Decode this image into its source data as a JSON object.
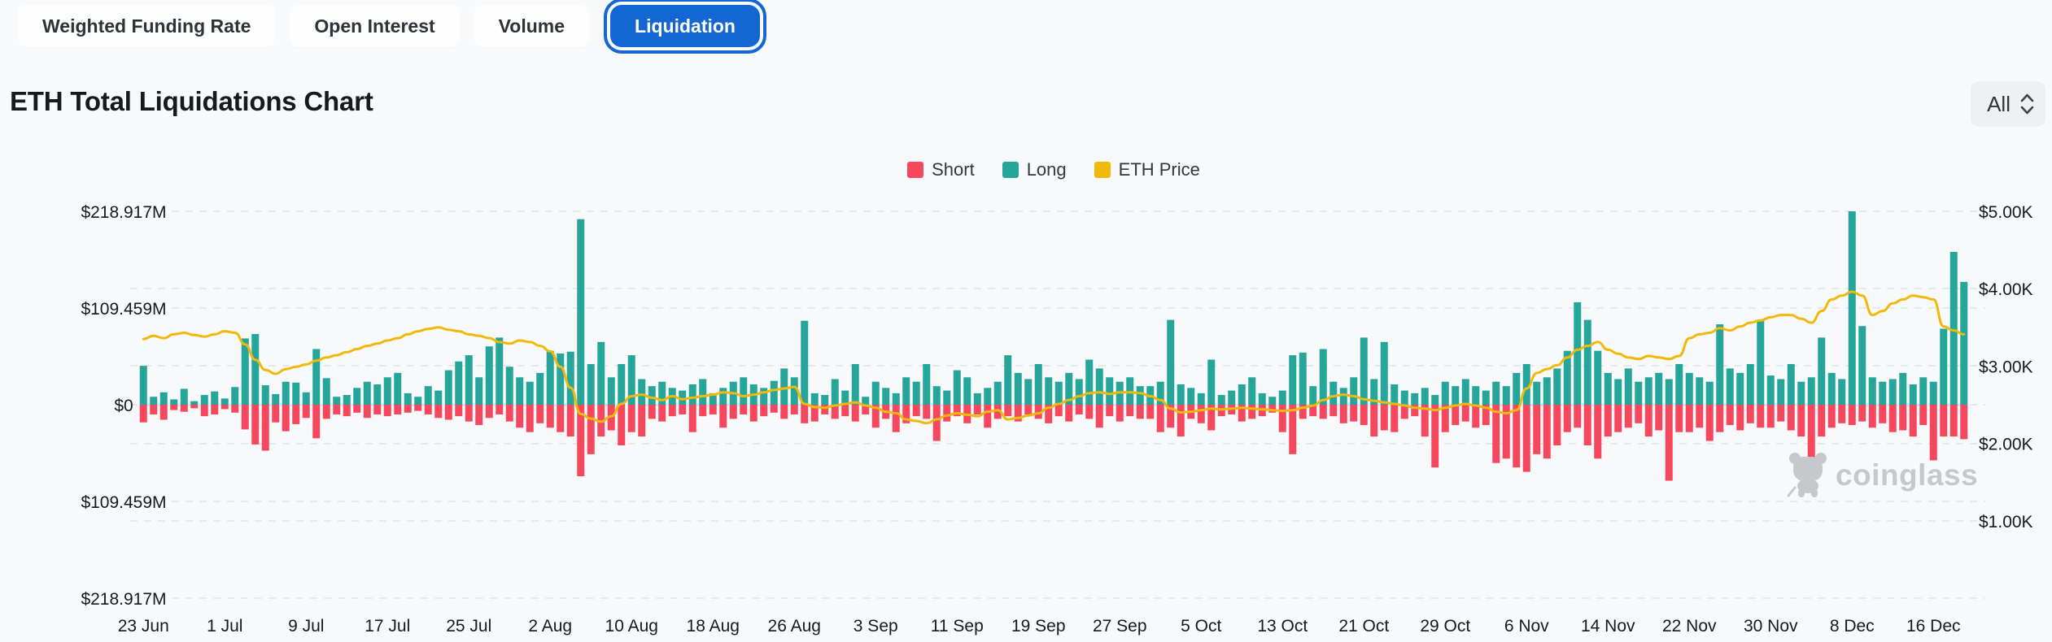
{
  "tabs": {
    "items": [
      {
        "label": "Weighted Funding Rate",
        "active": false
      },
      {
        "label": "Open Interest",
        "active": false
      },
      {
        "label": "Volume",
        "active": false
      },
      {
        "label": "Liquidation",
        "active": true
      }
    ]
  },
  "title": "ETH Total Liquidations Chart",
  "range_selector": {
    "value": "All"
  },
  "watermark": "coinglass",
  "colors": {
    "short": "#f5475d",
    "long": "#26a69a",
    "price": "#f0b90b",
    "active_tab": "#1467d2",
    "grid": "#e7e8ea",
    "axis_text": "#17191c",
    "watermark": "#c6c8cb"
  },
  "chart_data": {
    "type": "bar",
    "title": "ETH Total Liquidations Chart",
    "legend_position": "top-center",
    "grid": "dashed",
    "x_start_label": "23 Jun",
    "x_tick_labels": [
      "23 Jun",
      "1 Jul",
      "9 Jul",
      "17 Jul",
      "25 Jul",
      "2 Aug",
      "10 Aug",
      "18 Aug",
      "26 Aug",
      "3 Sep",
      "11 Sep",
      "19 Sep",
      "27 Sep",
      "5 Oct",
      "13 Oct",
      "21 Oct",
      "29 Oct",
      "6 Nov",
      "14 Nov",
      "22 Nov",
      "30 Nov",
      "8 Dec",
      "16 Dec"
    ],
    "x_tick_interval_days": 8,
    "left_axis": {
      "ticks": [
        "$218.917M",
        "$109.459M",
        "$0",
        "$109.459M",
        "$218.917M"
      ],
      "max_abs_millions": 218.917,
      "unit": "USD millions, Long up / Short down"
    },
    "right_axis": {
      "ticks": [
        "$5.00K",
        "$4.00K",
        "$3.00K",
        "$2.00K",
        "$1.00K"
      ],
      "tick_values": [
        5000,
        4000,
        3000,
        2000,
        1000
      ],
      "min": 0,
      "max": 5000,
      "unit": "ETH price USD"
    },
    "series": [
      {
        "name": "Long",
        "type": "bar",
        "direction": "up",
        "color": "#26a69a",
        "unit": "M",
        "values": [
          44,
          9,
          14,
          6,
          18,
          4,
          11,
          15,
          7,
          20,
          75,
          80,
          22,
          12,
          26,
          25,
          14,
          63,
          30,
          9,
          11,
          19,
          26,
          23,
          31,
          36,
          13,
          9,
          21,
          16,
          39,
          49,
          56,
          31,
          66,
          76,
          43,
          31,
          26,
          36,
          61,
          58,
          60,
          210,
          46,
          71,
          31,
          46,
          56,
          29,
          21,
          26,
          19,
          16,
          23,
          29,
          13,
          19,
          26,
          31,
          23,
          19,
          27,
          41,
          31,
          95,
          13,
          11,
          29,
          16,
          46,
          9,
          26,
          19,
          13,
          31,
          26,
          46,
          21,
          16,
          39,
          31,
          13,
          19,
          26,
          56,
          36,
          29,
          46,
          31,
          26,
          36,
          29,
          51,
          41,
          31,
          26,
          31,
          21,
          21,
          26,
          96,
          23,
          19,
          13,
          51,
          11,
          16,
          23,
          31,
          13,
          9,
          16,
          56,
          59,
          21,
          63,
          26,
          19,
          31,
          76,
          29,
          71,
          23,
          16,
          13,
          19,
          11,
          26,
          21,
          29,
          21,
          16,
          26,
          21,
          36,
          46,
          26,
          31,
          41,
          61,
          116,
          96,
          61,
          36,
          29,
          41,
          26,
          31,
          36,
          29,
          46,
          36,
          31,
          26,
          91,
          41,
          36,
          46,
          96,
          33,
          29,
          46,
          26,
          31,
          76,
          36,
          29,
          218.917,
          89,
          31,
          26,
          29,
          36,
          23,
          31,
          26,
          86,
          173,
          139
        ]
      },
      {
        "name": "Short",
        "type": "bar",
        "direction": "down",
        "color": "#f5475d",
        "unit": "M",
        "values": [
          20,
          11,
          17,
          6,
          8,
          4,
          13,
          11,
          5,
          9,
          28,
          45,
          52,
          20,
          30,
          22,
          15,
          38,
          16,
          11,
          13,
          9,
          15,
          11,
          13,
          11,
          9,
          7,
          11,
          15,
          17,
          13,
          19,
          23,
          15,
          11,
          19,
          26,
          31,
          21,
          26,
          31,
          36,
          81,
          56,
          36,
          29,
          46,
          31,
          36,
          16,
          19,
          13,
          11,
          31,
          13,
          11,
          26,
          16,
          11,
          19,
          13,
          9,
          16,
          11,
          21,
          19,
          11,
          16,
          13,
          19,
          11,
          26,
          16,
          31,
          21,
          13,
          16,
          41,
          19,
          13,
          21,
          11,
          26,
          16,
          13,
          19,
          11,
          16,
          21,
          13,
          19,
          11,
          16,
          26,
          13,
          19,
          13,
          16,
          16,
          31,
          26,
          36,
          16,
          21,
          29,
          13,
          11,
          19,
          16,
          13,
          9,
          31,
          56,
          16,
          13,
          16,
          13,
          21,
          19,
          23,
          36,
          29,
          31,
          16,
          13,
          36,
          71,
          31,
          23,
          19,
          26,
          23,
          66,
          61,
          71,
          76,
          56,
          61,
          46,
          31,
          26,
          46,
          61,
          36,
          31,
          26,
          21,
          36,
          29,
          86,
          31,
          31,
          26,
          41,
          31,
          23,
          29,
          21,
          26,
          26,
          19,
          29,
          36,
          76,
          36,
          26,
          21,
          23,
          19,
          26,
          21,
          31,
          29,
          36,
          23,
          63,
          36,
          36,
          39
        ]
      },
      {
        "name": "ETH Price",
        "type": "line",
        "color": "#f0b90b",
        "unit": "USD",
        "values": [
          3350,
          3390,
          3360,
          3410,
          3430,
          3400,
          3380,
          3410,
          3450,
          3430,
          3280,
          3080,
          2950,
          2900,
          2960,
          2990,
          3020,
          3070,
          3110,
          3140,
          3180,
          3220,
          3260,
          3290,
          3330,
          3360,
          3410,
          3450,
          3480,
          3500,
          3470,
          3450,
          3410,
          3390,
          3360,
          3310,
          3290,
          3330,
          3310,
          3260,
          3190,
          2990,
          2720,
          2380,
          2320,
          2280,
          2350,
          2510,
          2610,
          2630,
          2590,
          2560,
          2610,
          2570,
          2590,
          2610,
          2630,
          2660,
          2650,
          2610,
          2630,
          2660,
          2690,
          2710,
          2730,
          2510,
          2470,
          2460,
          2490,
          2510,
          2530,
          2490,
          2460,
          2410,
          2390,
          2310,
          2290,
          2260,
          2310,
          2360,
          2390,
          2370,
          2350,
          2410,
          2430,
          2310,
          2330,
          2360,
          2390,
          2460,
          2510,
          2560,
          2610,
          2650,
          2660,
          2640,
          2660,
          2660,
          2650,
          2610,
          2560,
          2450,
          2400,
          2410,
          2430,
          2450,
          2440,
          2450,
          2460,
          2450,
          2440,
          2430,
          2420,
          2430,
          2460,
          2490,
          2560,
          2610,
          2630,
          2610,
          2570,
          2550,
          2530,
          2510,
          2490,
          2460,
          2450,
          2430,
          2460,
          2490,
          2510,
          2490,
          2460,
          2410,
          2390,
          2430,
          2710,
          2910,
          2960,
          3010,
          3110,
          3210,
          3260,
          3310,
          3210,
          3160,
          3110,
          3090,
          3130,
          3110,
          3090,
          3130,
          3360,
          3410,
          3430,
          3490,
          3460,
          3510,
          3560,
          3590,
          3630,
          3660,
          3660,
          3610,
          3560,
          3710,
          3860,
          3910,
          3960,
          3910,
          3660,
          3710,
          3810,
          3860,
          3910,
          3890,
          3860,
          3510,
          3460,
          3410
        ]
      }
    ]
  }
}
